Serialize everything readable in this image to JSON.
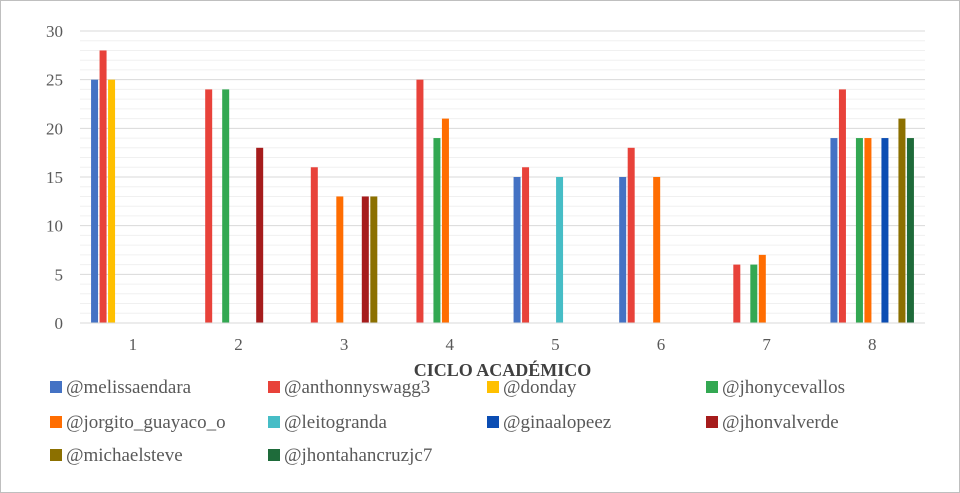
{
  "chart_data": {
    "type": "bar",
    "xlabel": "CICLO ACADÉMICO",
    "ylabel": "",
    "title": "",
    "ylim": [
      0,
      30
    ],
    "ymajor_step": 5,
    "yminor_step": 1,
    "grid": true,
    "legend_position": "bottom",
    "categories": [
      "1",
      "2",
      "3",
      "4",
      "5",
      "6",
      "7",
      "8"
    ],
    "series": [
      {
        "name": "@melissaendara",
        "color": "#4472c4",
        "values": [
          25,
          0,
          0,
          0,
          15,
          15,
          0,
          19
        ]
      },
      {
        "name": "@anthonnyswagg3",
        "color": "#e8423a",
        "values": [
          28,
          24,
          16,
          25,
          16,
          18,
          6,
          24
        ]
      },
      {
        "name": "@donday",
        "color": "#ffc000",
        "values": [
          25,
          0,
          0,
          0,
          0,
          0,
          0,
          0
        ]
      },
      {
        "name": "@jhonycevallos",
        "color": "#33a852",
        "values": [
          0,
          24,
          0,
          19,
          0,
          0,
          6,
          19
        ]
      },
      {
        "name": "@jorgito_guayaco_o",
        "color": "#ff6d01",
        "values": [
          0,
          0,
          13,
          21,
          0,
          15,
          7,
          19
        ]
      },
      {
        "name": "@leitogranda",
        "color": "#46bdc6",
        "values": [
          0,
          0,
          0,
          0,
          15,
          0,
          0,
          0
        ]
      },
      {
        "name": "@ginaalopeez",
        "color": "#0b4db3",
        "values": [
          0,
          0,
          0,
          0,
          0,
          0,
          0,
          19
        ]
      },
      {
        "name": "@jhonvalverde",
        "color": "#a61c1c",
        "values": [
          0,
          18,
          13,
          0,
          0,
          0,
          0,
          0
        ]
      },
      {
        "name": "@michaelsteve",
        "color": "#8c7000",
        "values": [
          0,
          0,
          13,
          0,
          0,
          0,
          0,
          21
        ]
      },
      {
        "name": "@jhontahancruzjc7",
        "color": "#1e6b3a",
        "values": [
          0,
          0,
          0,
          0,
          0,
          0,
          0,
          19
        ]
      }
    ]
  }
}
